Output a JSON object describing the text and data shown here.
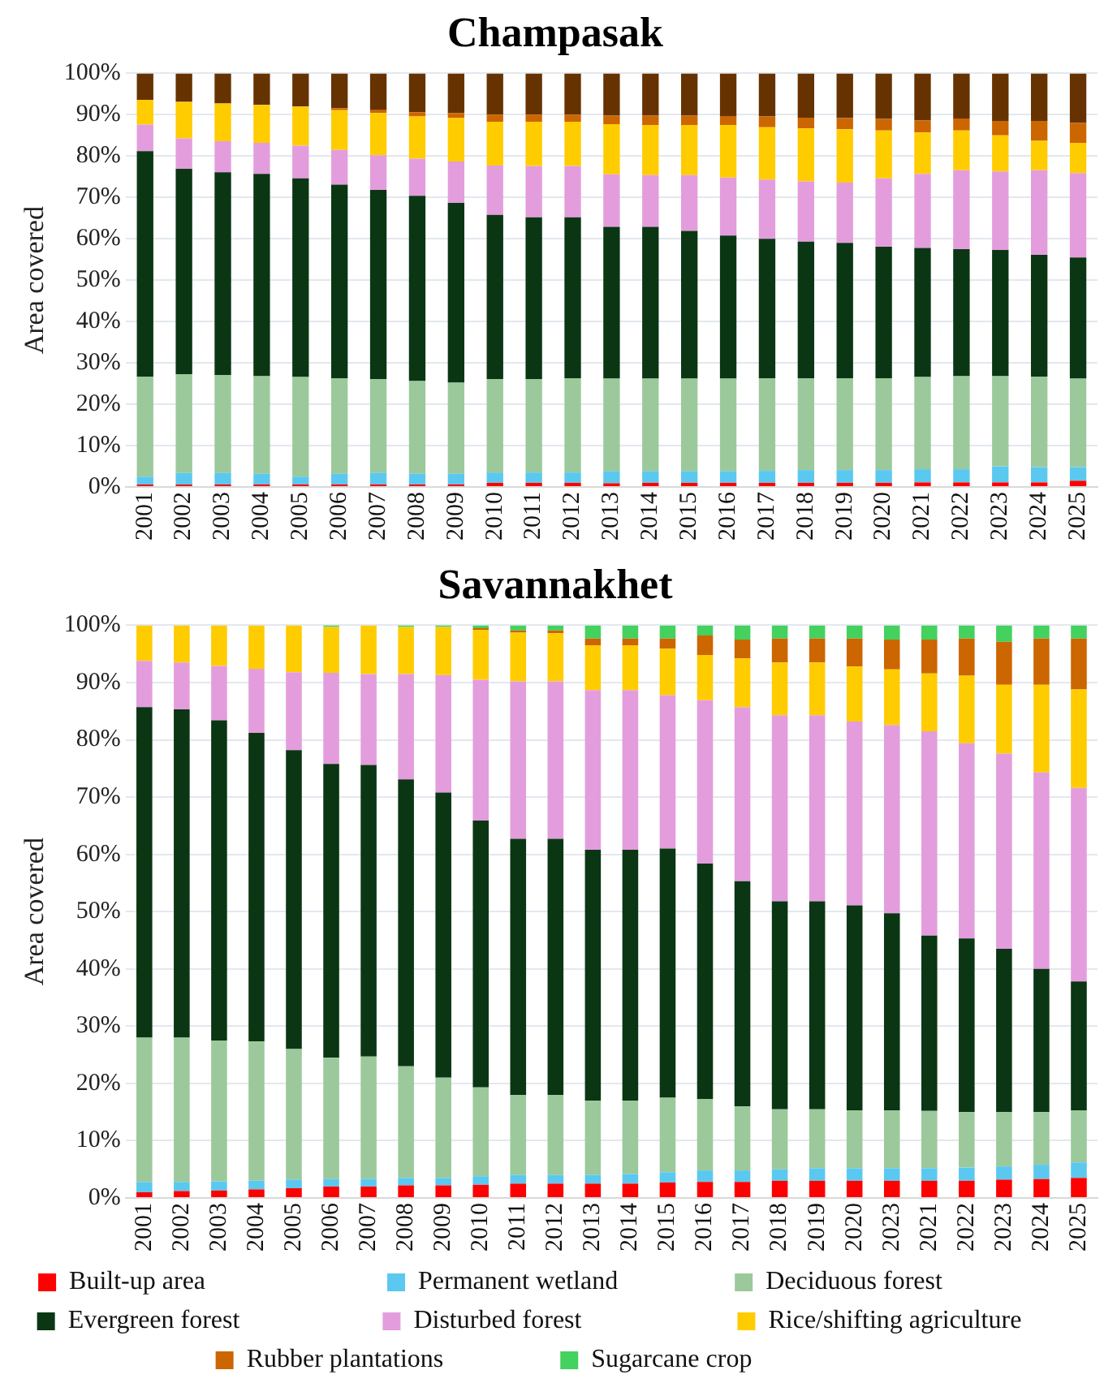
{
  "chart_data": [
    {
      "type": "bar",
      "title": "Champasak",
      "ylabel": "Area covered",
      "stacked": true,
      "grid": "y",
      "legend": false,
      "categories": [
        "2001",
        "2002",
        "2003",
        "2004",
        "2005",
        "2006",
        "2007",
        "2008",
        "2009",
        "2010",
        "2011",
        "2012",
        "2013",
        "2014",
        "2015",
        "2016",
        "2017",
        "2018",
        "2019",
        "2020",
        "2021",
        "2022",
        "2023",
        "2024",
        "2025"
      ],
      "ylim": [
        0,
        100
      ],
      "yticks": [
        {
          "value": 0,
          "label": "0%"
        },
        {
          "value": 10,
          "label": "10%"
        },
        {
          "value": 20,
          "label": "20%"
        },
        {
          "value": 30,
          "label": "30%"
        },
        {
          "value": 40,
          "label": "40%"
        },
        {
          "value": 50,
          "label": "50%"
        },
        {
          "value": 60,
          "label": "60%"
        },
        {
          "value": 70,
          "label": "70%"
        },
        {
          "value": 80,
          "label": "80%"
        },
        {
          "value": 90,
          "label": "90%"
        },
        {
          "value": 100,
          "label": "100%"
        }
      ],
      "series": [
        {
          "color": "#ff0000",
          "values": [
            0.6,
            0.6,
            0.6,
            0.6,
            0.6,
            0.6,
            0.6,
            0.6,
            0.6,
            1.0,
            1.0,
            1.0,
            0.9,
            1.0,
            1.0,
            1.0,
            1.0,
            1.0,
            1.0,
            1.0,
            1.1,
            1.1,
            1.1,
            1.1,
            1.5
          ]
        },
        {
          "color": "#5bc8f0",
          "values": [
            1.9,
            2.8,
            2.8,
            2.6,
            1.9,
            2.6,
            2.8,
            2.6,
            2.6,
            2.5,
            2.5,
            2.5,
            2.9,
            2.8,
            2.8,
            2.8,
            2.9,
            3.1,
            3.1,
            3.1,
            3.2,
            3.2,
            3.9,
            3.7,
            3.3
          ]
        },
        {
          "color": "#9bc99b",
          "values": [
            24.2,
            23.9,
            23.7,
            23.6,
            24.1,
            23.1,
            22.7,
            22.4,
            22.0,
            22.6,
            22.6,
            22.8,
            22.4,
            22.4,
            22.4,
            22.4,
            22.4,
            22.2,
            22.2,
            22.2,
            22.3,
            22.5,
            21.8,
            21.9,
            21.4
          ]
        },
        {
          "color": "#0b3614",
          "values": [
            54.5,
            49.6,
            49.0,
            48.9,
            48.0,
            46.8,
            45.7,
            44.8,
            43.5,
            39.7,
            39.1,
            38.9,
            36.7,
            36.7,
            35.7,
            34.6,
            33.7,
            33.0,
            32.7,
            31.8,
            31.2,
            30.7,
            30.5,
            29.4,
            29.3
          ]
        },
        {
          "color": "#e39ddc",
          "values": [
            6.4,
            7.4,
            7.5,
            7.5,
            7.9,
            8.4,
            8.4,
            9.0,
            10.0,
            11.9,
            12.4,
            12.4,
            12.7,
            12.5,
            13.5,
            14.0,
            14.3,
            14.6,
            14.6,
            16.5,
            17.9,
            19.1,
            19.0,
            20.5,
            20.4
          ]
        },
        {
          "color": "#ffcc00",
          "values": [
            6.0,
            8.8,
            9.1,
            9.2,
            9.5,
            9.6,
            10.2,
            10.2,
            10.5,
            10.6,
            10.7,
            10.7,
            12.1,
            12.1,
            12.1,
            12.7,
            12.7,
            12.8,
            12.9,
            11.6,
            10.0,
            9.6,
            8.7,
            7.1,
            7.3
          ]
        },
        {
          "color": "#cc6600",
          "values": [
            0,
            0,
            0,
            0,
            0,
            0.5,
            0.7,
            1.0,
            1.2,
            1.7,
            1.7,
            1.7,
            2.1,
            2.3,
            2.3,
            2.2,
            2.6,
            2.6,
            2.7,
            2.8,
            2.9,
            2.9,
            3.5,
            4.8,
            4.8
          ]
        },
        {
          "color": "#663300",
          "values": [
            6.4,
            6.9,
            7.3,
            7.6,
            8.0,
            8.4,
            8.9,
            9.4,
            9.6,
            10.0,
            10.0,
            10.0,
            10.2,
            10.2,
            10.2,
            10.3,
            10.4,
            10.7,
            10.8,
            11.0,
            11.4,
            10.9,
            11.5,
            11.5,
            12.0
          ]
        }
      ]
    },
    {
      "type": "bar",
      "title": "Savannakhet",
      "ylabel": "Area covered",
      "stacked": true,
      "grid": "y",
      "legend": "bottom",
      "categories": [
        "2001",
        "2002",
        "2003",
        "2004",
        "2005",
        "2006",
        "2007",
        "2008",
        "2009",
        "2010",
        "2011",
        "2012",
        "2013",
        "2014",
        "2015",
        "2016",
        "2017",
        "2018",
        "2019",
        "2020",
        "2023",
        "2021",
        "2022",
        "2023",
        "2024",
        "2025"
      ],
      "ylim": [
        0,
        100
      ],
      "yticks": [
        {
          "value": 0,
          "label": "0%"
        },
        {
          "value": 10,
          "label": "10%"
        },
        {
          "value": 20,
          "label": "20%"
        },
        {
          "value": 30,
          "label": "30%"
        },
        {
          "value": 40,
          "label": "40%"
        },
        {
          "value": 50,
          "label": "50%"
        },
        {
          "value": 60,
          "label": "60%"
        },
        {
          "value": 70,
          "label": "70%"
        },
        {
          "value": 80,
          "label": "80%"
        },
        {
          "value": 90,
          "label": "90%"
        },
        {
          "value": 100,
          "label": "100%"
        }
      ],
      "series": [
        {
          "name": "Built-up area",
          "color": "#ff0000",
          "values": [
            1.0,
            1.2,
            1.3,
            1.5,
            1.7,
            2.0,
            2.0,
            2.2,
            2.2,
            2.3,
            2.5,
            2.5,
            2.5,
            2.5,
            2.7,
            2.8,
            2.8,
            3.0,
            3.0,
            3.0,
            3.0,
            3.0,
            3.0,
            3.2,
            3.3,
            3.5
          ]
        },
        {
          "name": "Permanent wetland",
          "color": "#5bc8f0",
          "values": [
            1.8,
            1.6,
            1.6,
            1.5,
            1.5,
            1.3,
            1.3,
            1.3,
            1.3,
            1.5,
            1.5,
            1.5,
            1.5,
            1.7,
            1.8,
            2.0,
            2.0,
            2.0,
            2.2,
            2.2,
            2.2,
            2.2,
            2.3,
            2.3,
            2.5,
            2.7
          ]
        },
        {
          "name": "Deciduous forest",
          "color": "#9bc99b",
          "values": [
            25.2,
            25.2,
            24.6,
            24.3,
            22.8,
            21.2,
            21.4,
            19.5,
            17.5,
            15.5,
            14.0,
            14.0,
            13.0,
            12.8,
            13.0,
            12.5,
            11.2,
            10.5,
            10.3,
            10.1,
            10.1,
            10.0,
            9.7,
            9.5,
            9.2,
            9.1
          ]
        },
        {
          "name": "Evergreen forest",
          "color": "#0b3614",
          "values": [
            57.7,
            57.3,
            55.9,
            53.9,
            52.2,
            51.3,
            50.9,
            50.1,
            49.8,
            46.6,
            44.7,
            44.7,
            43.8,
            43.8,
            43.5,
            41.1,
            39.3,
            36.3,
            36.3,
            35.8,
            34.4,
            30.6,
            30.3,
            28.5,
            25.0,
            22.5
          ]
        },
        {
          "name": "Disturbed forest",
          "color": "#e39ddc",
          "values": [
            8.1,
            8.2,
            9.5,
            11.2,
            13.6,
            15.9,
            15.9,
            18.4,
            20.5,
            24.6,
            27.5,
            27.5,
            27.9,
            27.9,
            26.8,
            28.5,
            30.4,
            32.5,
            32.5,
            32.1,
            32.9,
            35.7,
            34.1,
            34.1,
            34.3,
            33.8
          ]
        },
        {
          "name": "Rice/shifting agriculture",
          "color": "#ffcc00",
          "values": [
            6.2,
            6.5,
            7.1,
            7.6,
            8.2,
            8.0,
            8.5,
            8.2,
            8.4,
            8.7,
            8.5,
            8.4,
            7.8,
            7.8,
            8.1,
            7.9,
            8.5,
            9.2,
            9.2,
            9.6,
            9.7,
            10.1,
            11.8,
            12.0,
            15.3,
            17.2
          ]
        },
        {
          "name": "Rubber plantations",
          "color": "#cc6600",
          "values": [
            0,
            0,
            0,
            0,
            0,
            0,
            0,
            0,
            0,
            0.3,
            0.4,
            0.5,
            1.2,
            1.2,
            1.8,
            3.4,
            3.3,
            4.2,
            4.2,
            4.9,
            5.2,
            5.9,
            6.5,
            7.5,
            8.1,
            8.9
          ]
        },
        {
          "name": "Sugarcane crop",
          "color": "#44d15e",
          "values": [
            0,
            0,
            0,
            0,
            0,
            0.3,
            0,
            0.3,
            0.3,
            0.5,
            0.9,
            0.9,
            2.3,
            2.3,
            2.3,
            1.8,
            2.5,
            2.3,
            2.3,
            2.3,
            2.5,
            2.5,
            2.3,
            2.9,
            2.3,
            2.3
          ]
        }
      ]
    }
  ]
}
